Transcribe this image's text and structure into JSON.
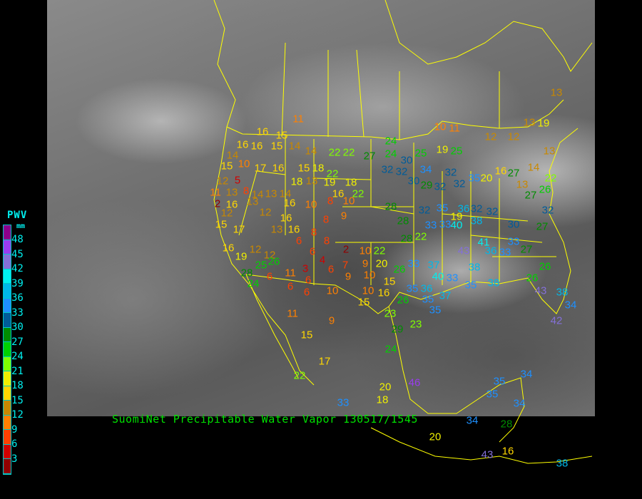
{
  "caption": "SuomiNet Precipitable Water Vapor 130517/1545",
  "legend": {
    "title": "PWV",
    "unit": "mm",
    "tick_labels": [
      "48",
      "45",
      "42",
      "39",
      "36",
      "33",
      "30",
      "27",
      "24",
      "21",
      "18",
      "15",
      "12",
      "9",
      "6",
      "3"
    ],
    "colors_low_to_high": [
      "#900000",
      "#d00000",
      "#ff4000",
      "#ff8000",
      "#c88800",
      "#ffd700",
      "#f0f000",
      "#80ff00",
      "#00d000",
      "#008c00",
      "#005c99",
      "#1e90ff",
      "#00b8e8",
      "#00f0f0",
      "#8470d8",
      "#9a3cf0",
      "#8b008b"
    ]
  },
  "border_color": "#ffff00",
  "stations_pwv_mm": [
    11,
    16,
    15,
    16,
    16,
    15,
    14,
    14,
    22,
    22,
    27,
    24,
    24,
    30,
    25,
    19,
    25,
    10,
    11,
    12,
    12,
    13,
    19,
    13,
    13,
    14,
    15,
    10,
    17,
    16,
    15,
    18,
    22,
    12,
    5,
    11,
    13,
    8,
    14,
    13,
    14,
    18,
    13,
    19,
    18,
    16,
    22,
    16,
    2,
    13,
    12,
    16,
    10,
    8,
    10,
    12,
    15,
    17,
    16,
    13,
    16,
    8,
    9,
    8,
    8,
    6,
    16,
    19,
    12,
    12,
    25,
    26,
    28,
    24,
    6,
    11,
    6,
    3,
    6,
    6,
    6,
    4,
    6,
    7,
    9,
    2,
    10,
    22,
    9,
    20,
    10,
    10,
    10,
    16,
    15,
    15,
    26,
    33,
    37,
    40,
    33,
    35,
    36,
    35,
    37,
    26,
    35,
    28,
    32,
    32,
    30,
    34,
    32,
    29,
    32,
    32,
    35,
    20,
    16,
    27,
    14,
    13,
    27,
    26,
    22,
    28,
    28,
    22,
    32,
    35,
    19,
    36,
    32,
    32,
    33,
    33,
    40,
    38,
    43,
    41,
    36,
    33,
    33,
    27,
    30,
    27,
    32,
    38,
    35,
    38,
    26,
    26,
    43,
    38,
    34,
    42,
    23,
    29,
    23,
    24,
    9,
    11,
    15,
    17,
    22,
    20,
    18,
    46,
    33,
    35,
    35,
    34,
    34,
    34,
    28,
    20,
    16,
    43,
    38
  ]
}
